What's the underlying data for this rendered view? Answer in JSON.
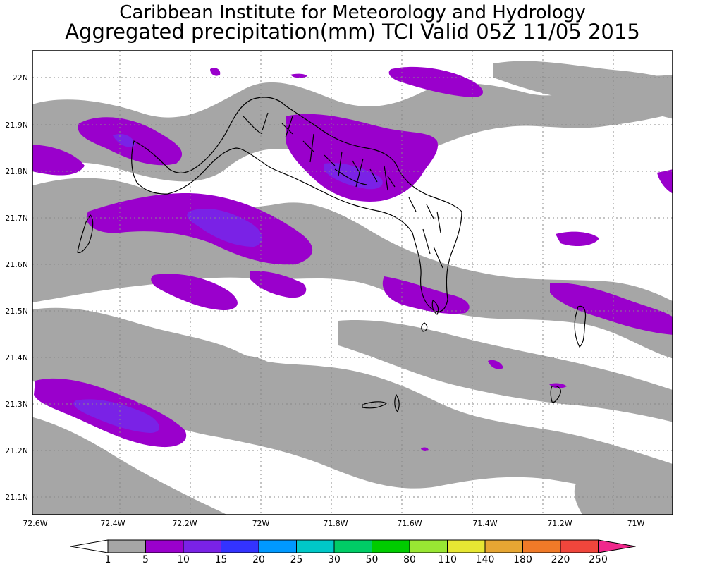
{
  "header": {
    "line1": "Caribbean Institute for Meteorology and Hydrology",
    "line2": "Aggregated precipitation(mm) TCI Valid 05Z 11/05 2015"
  },
  "map": {
    "lat_labels": [
      "22N",
      "21.9N",
      "21.8N",
      "21.7N",
      "21.6N",
      "21.5N",
      "21.4N",
      "21.3N",
      "21.2N",
      "21.1N"
    ],
    "lon_labels": [
      "72.6W",
      "72.4W",
      "72.2W",
      "72W",
      "71.8W",
      "71.6W",
      "71.4W",
      "71.2W",
      "71W"
    ],
    "gridlines": "dotted"
  },
  "colorbar": {
    "levels": [
      "1",
      "5",
      "10",
      "15",
      "20",
      "25",
      "30",
      "50",
      "80",
      "110",
      "140",
      "180",
      "220",
      "250"
    ],
    "colors": [
      "#ffffff",
      "#a6a6a6",
      "#9a00cc",
      "#7a22e6",
      "#3333ff",
      "#0099ff",
      "#00c8c8",
      "#00cc66",
      "#00cc00",
      "#99e633",
      "#e6e633",
      "#e6a633",
      "#f07a28",
      "#f0463c",
      "#f0288c"
    ]
  }
}
